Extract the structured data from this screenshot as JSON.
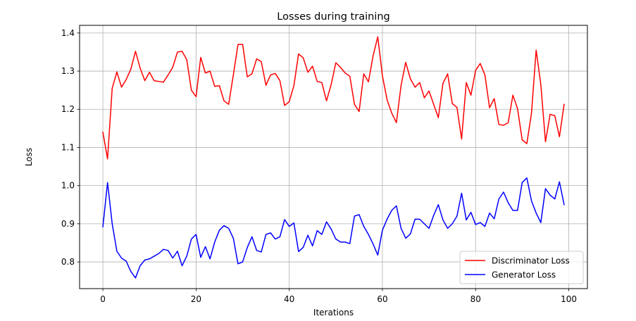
{
  "chart_data": {
    "type": "line",
    "title": "Losses during training",
    "xlabel": "Iterations",
    "ylabel": "Loss",
    "xlim": [
      -5,
      104
    ],
    "ylim": [
      0.73,
      1.42
    ],
    "xticks": [
      0,
      20,
      40,
      60,
      80,
      100
    ],
    "yticks": [
      0.8,
      0.9,
      1.0,
      1.1,
      1.2,
      1.3,
      1.4
    ],
    "xtick_labels": [
      "0",
      "20",
      "40",
      "60",
      "80",
      "100"
    ],
    "ytick_labels": [
      "0.8",
      "0.9",
      "1.0",
      "1.1",
      "1.2",
      "1.3",
      "1.4"
    ],
    "grid": true,
    "legend_position": "lower-right",
    "x": [
      0,
      1,
      2,
      3,
      4,
      5,
      6,
      7,
      8,
      9,
      10,
      11,
      12,
      13,
      14,
      15,
      16,
      17,
      18,
      19,
      20,
      21,
      22,
      23,
      24,
      25,
      26,
      27,
      28,
      29,
      30,
      31,
      32,
      33,
      34,
      35,
      36,
      37,
      38,
      39,
      40,
      41,
      42,
      43,
      44,
      45,
      46,
      47,
      48,
      49,
      50,
      51,
      52,
      53,
      54,
      55,
      56,
      57,
      58,
      59,
      60,
      61,
      62,
      63,
      64,
      65,
      66,
      67,
      68,
      69,
      70,
      71,
      72,
      73,
      74,
      75,
      76,
      77,
      78,
      79,
      80,
      81,
      82,
      83,
      84,
      85,
      86,
      87,
      88,
      89,
      90,
      91,
      92,
      93,
      94,
      95,
      96,
      97,
      98,
      99
    ],
    "series": [
      {
        "name": "Discriminator Loss",
        "color": "#ff0000",
        "values": [
          1.14,
          1.07,
          1.255,
          1.298,
          1.258,
          1.278,
          1.305,
          1.352,
          1.308,
          1.275,
          1.297,
          1.275,
          1.273,
          1.271,
          1.29,
          1.31,
          1.35,
          1.352,
          1.33,
          1.25,
          1.233,
          1.336,
          1.295,
          1.3,
          1.26,
          1.262,
          1.222,
          1.213,
          1.29,
          1.37,
          1.37,
          1.285,
          1.293,
          1.332,
          1.325,
          1.263,
          1.29,
          1.294,
          1.275,
          1.21,
          1.22,
          1.262,
          1.345,
          1.335,
          1.297,
          1.313,
          1.273,
          1.27,
          1.222,
          1.265,
          1.322,
          1.31,
          1.295,
          1.287,
          1.213,
          1.194,
          1.293,
          1.272,
          1.34,
          1.39,
          1.288,
          1.225,
          1.19,
          1.165,
          1.262,
          1.323,
          1.28,
          1.258,
          1.27,
          1.23,
          1.248,
          1.213,
          1.178,
          1.268,
          1.293,
          1.215,
          1.205,
          1.122,
          1.27,
          1.237,
          1.302,
          1.32,
          1.29,
          1.204,
          1.228,
          1.16,
          1.158,
          1.165,
          1.237,
          1.202,
          1.12,
          1.11,
          1.19,
          1.355,
          1.265,
          1.115,
          1.187,
          1.183,
          1.128,
          1.213
        ]
      },
      {
        "name": "Generator Loss",
        "color": "#0000ff",
        "values": [
          0.892,
          1.008,
          0.9,
          0.828,
          0.81,
          0.802,
          0.775,
          0.758,
          0.79,
          0.805,
          0.808,
          0.815,
          0.822,
          0.833,
          0.83,
          0.81,
          0.828,
          0.79,
          0.815,
          0.86,
          0.872,
          0.812,
          0.84,
          0.808,
          0.852,
          0.883,
          0.895,
          0.888,
          0.862,
          0.795,
          0.8,
          0.838,
          0.866,
          0.83,
          0.826,
          0.872,
          0.876,
          0.86,
          0.866,
          0.911,
          0.893,
          0.902,
          0.827,
          0.838,
          0.87,
          0.842,
          0.882,
          0.872,
          0.905,
          0.886,
          0.86,
          0.852,
          0.852,
          0.848,
          0.92,
          0.924,
          0.893,
          0.872,
          0.847,
          0.818,
          0.883,
          0.912,
          0.935,
          0.947,
          0.888,
          0.862,
          0.873,
          0.912,
          0.912,
          0.9,
          0.888,
          0.922,
          0.95,
          0.91,
          0.888,
          0.9,
          0.92,
          0.98,
          0.91,
          0.93,
          0.898,
          0.903,
          0.893,
          0.928,
          0.913,
          0.965,
          0.983,
          0.955,
          0.935,
          0.935,
          1.008,
          1.02,
          0.96,
          0.928,
          0.903,
          0.992,
          0.975,
          0.965,
          1.01,
          0.95
        ]
      }
    ]
  }
}
